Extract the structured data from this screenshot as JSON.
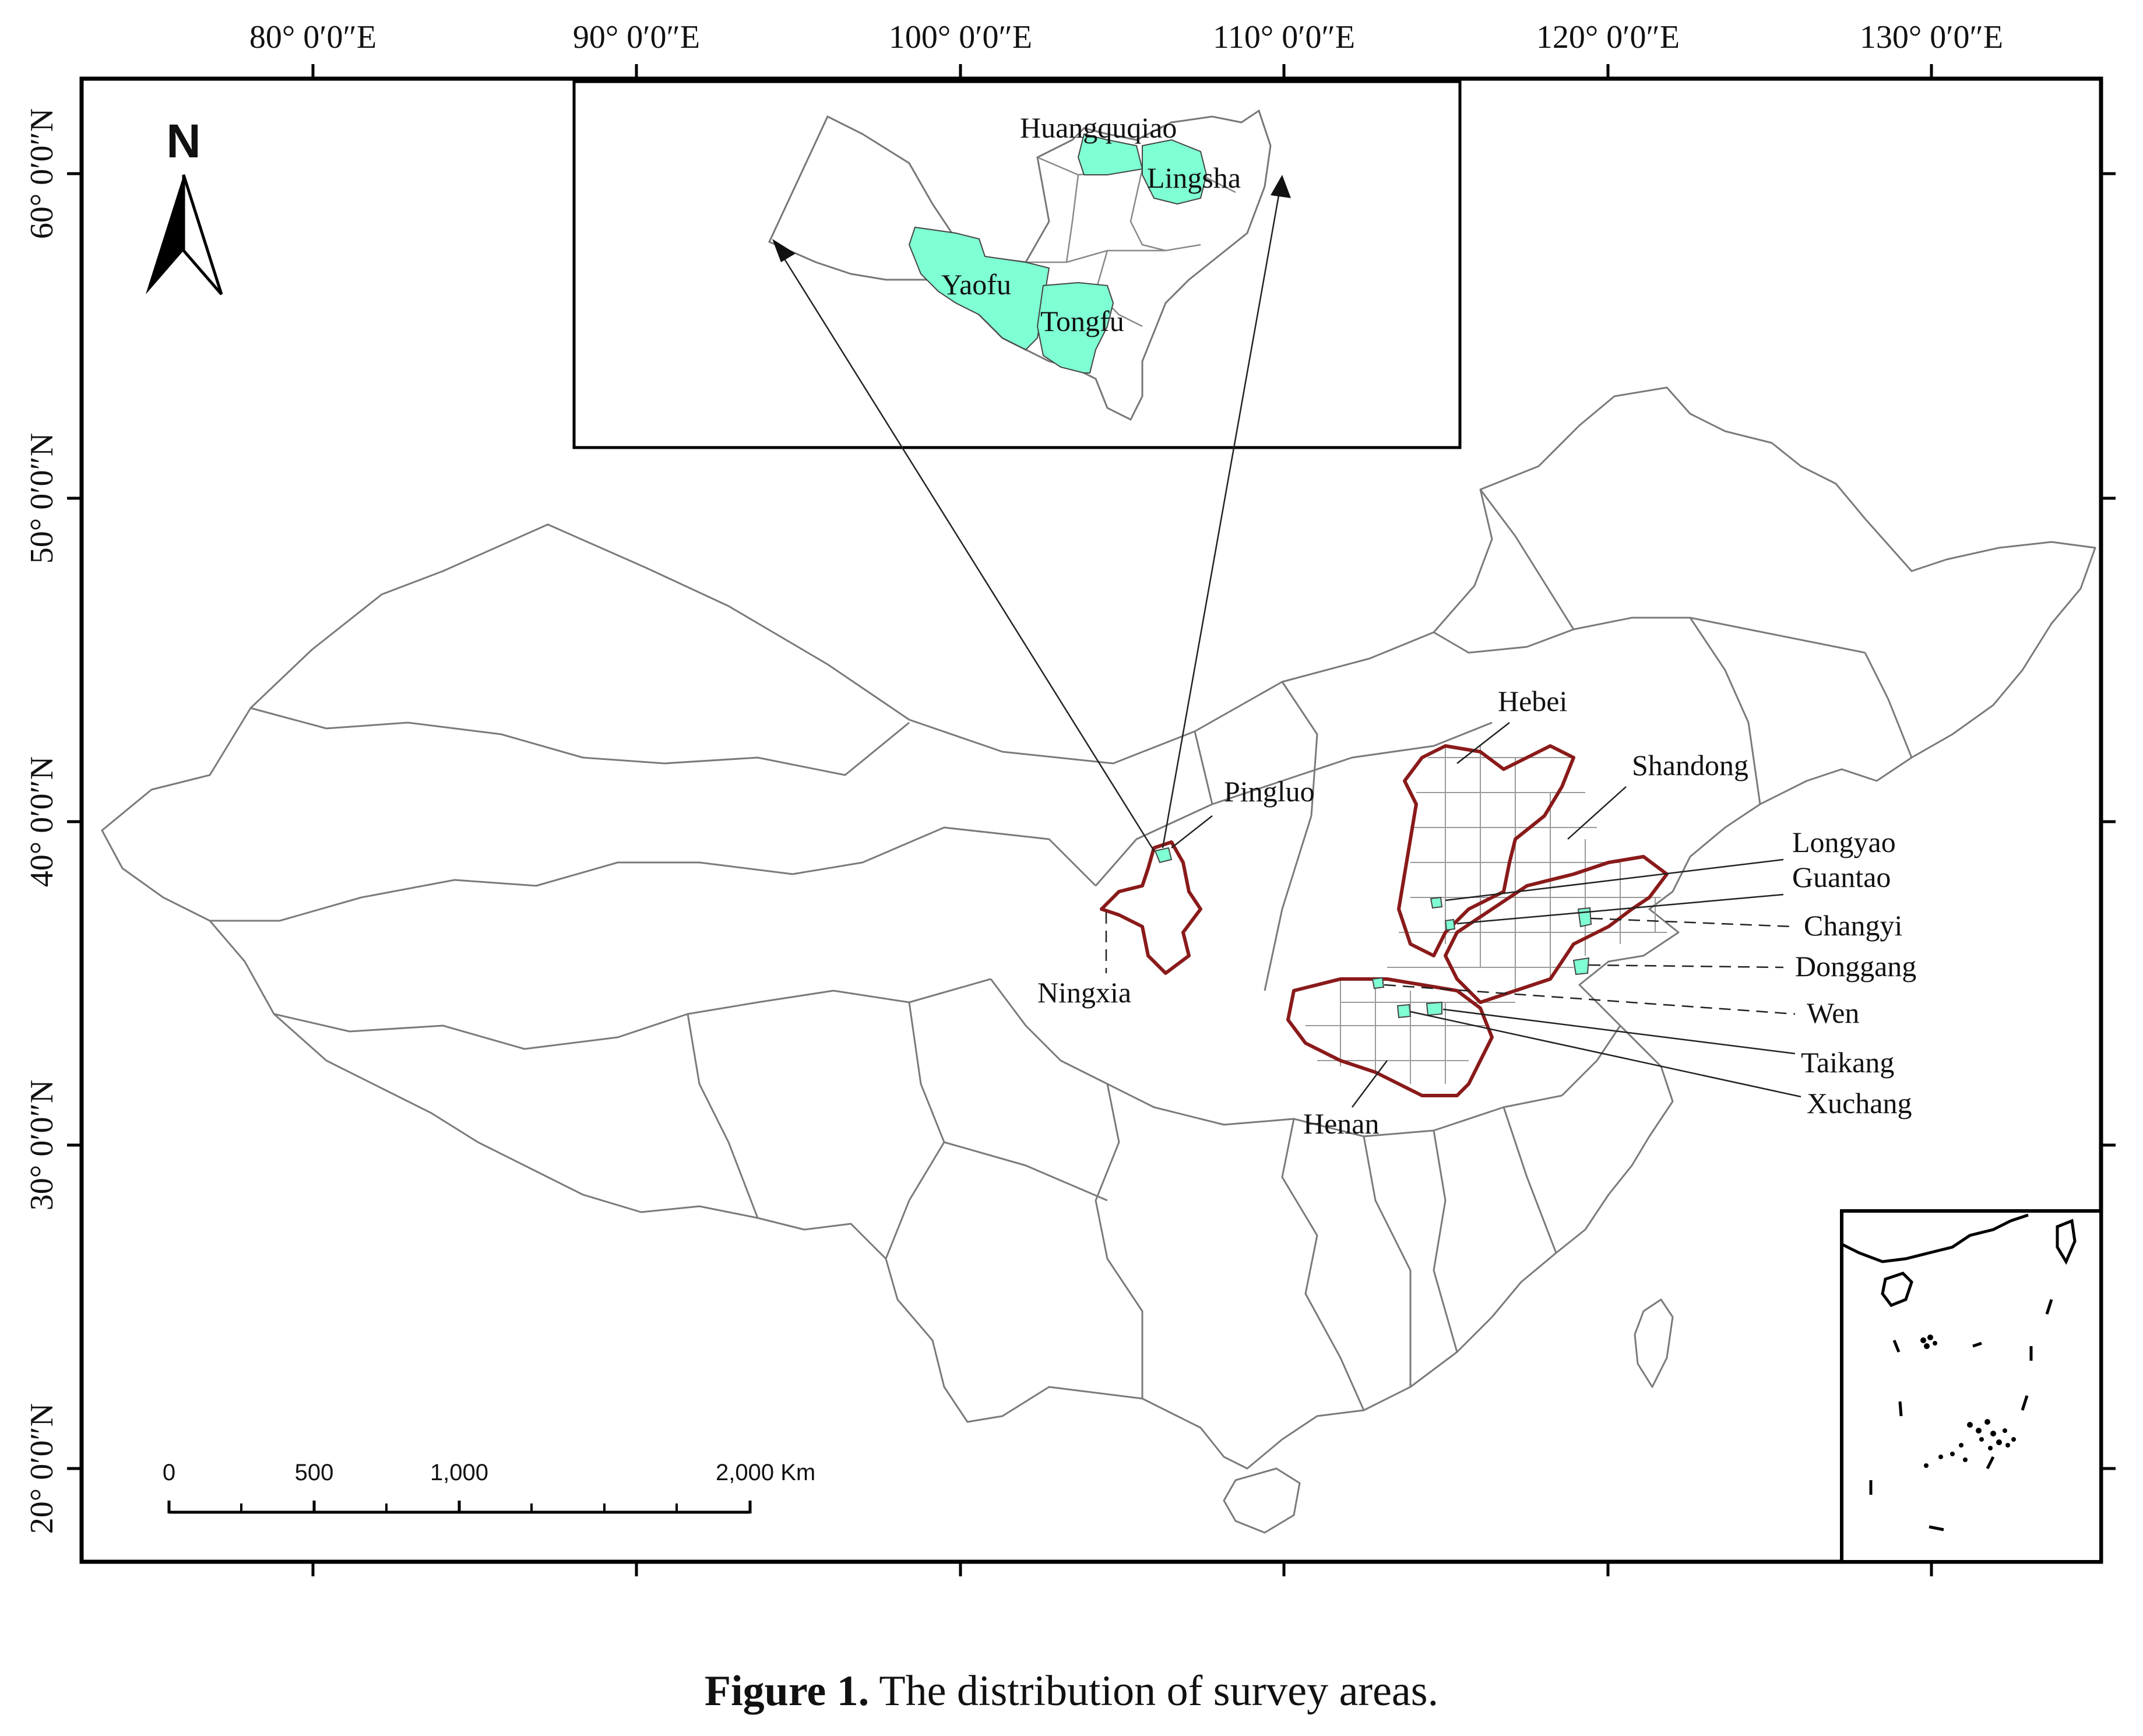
{
  "map": {
    "longitude_ticks": [
      "80° 0′0″E",
      "90° 0′0″E",
      "100° 0′0″E",
      "110° 0′0″E",
      "120° 0′0″E",
      "130° 0′0″E"
    ],
    "latitude_ticks": [
      "60° 0′0″N",
      "50° 0′0″N",
      "40° 0′0″N",
      "30° 0′0″N",
      "20° 0′0″N"
    ],
    "north_arrow": {
      "label": "N",
      "icon": "north-arrow-icon"
    },
    "scale_bar": {
      "labels": [
        "0",
        "500",
        "1,000",
        "2,000 Km"
      ]
    },
    "province_labels": {
      "hebei": "Hebei",
      "shandong": "Shandong",
      "henan": "Henan",
      "ningxia": "Ningxia"
    },
    "site_labels": {
      "pingluo": "Pingluo",
      "longyao": "Longyao",
      "guantao": "Guantao",
      "changyi": "Changyi",
      "donggang": "Donggang",
      "wen": "Wen",
      "taikang": "Taikang",
      "xuchang": "Xuchang"
    },
    "inset": {
      "labels": {
        "huangquqiao": "Huangquqiao",
        "lingsha": "Lingsha",
        "yaofu": "Yaofu",
        "tongfu": "Tongfu"
      }
    },
    "colors": {
      "study_area_fill": "#7fffd4",
      "study_province_outline": "#8a1a1a",
      "province_outline": "#7a7a7a",
      "frame": "#000000"
    }
  },
  "caption": {
    "label": "Figure 1.",
    "text": "The distribution of survey areas."
  }
}
